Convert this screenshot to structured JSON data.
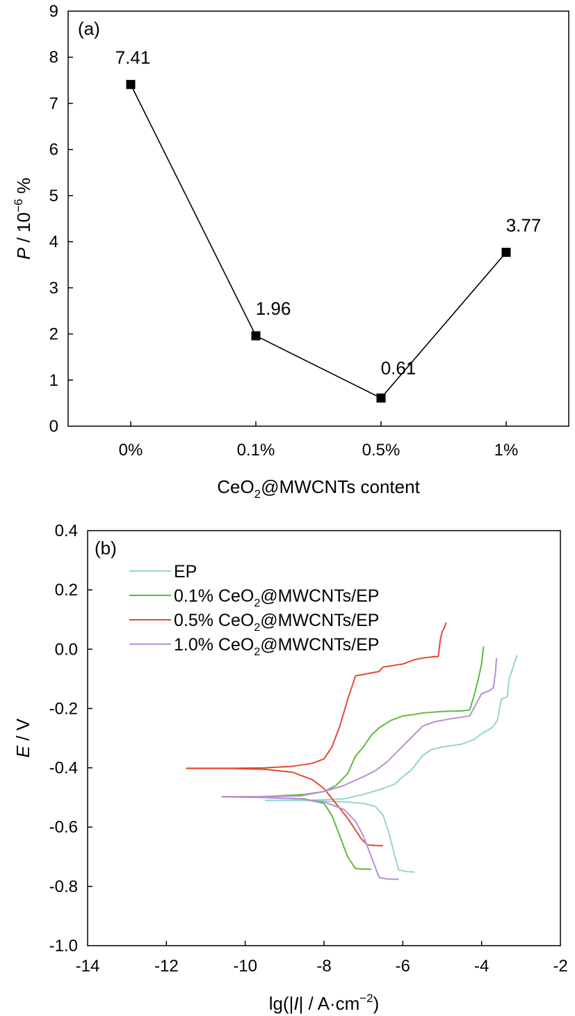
{
  "chart_data": [
    {
      "type": "line",
      "panel_label": "(a)",
      "categories": [
        "0%",
        "0.1%",
        "0.5%",
        "1%"
      ],
      "values": [
        7.41,
        1.96,
        0.61,
        3.77
      ],
      "data_labels": [
        "7.41",
        "1.96",
        "0.61",
        "3.77"
      ],
      "xlabel": {
        "pre": "CeO",
        "sub": "2",
        "post": "@MWCNTs content"
      },
      "ylabel": {
        "italic": "P",
        "pre": " / 10",
        "sup": "−6",
        "post": " %"
      },
      "ylim": [
        0,
        9
      ],
      "yticks": [
        "0",
        "1",
        "2",
        "3",
        "4",
        "5",
        "6",
        "7",
        "8",
        "9"
      ],
      "marker": "square",
      "color": "#000000",
      "grid": false
    },
    {
      "type": "line",
      "panel_label": "(b)",
      "xlabel": {
        "pre": "lg(|",
        "italic": "I",
        "mid": "| / A·cm",
        "sup": "−2",
        "post": ")"
      },
      "ylabel": {
        "italic": "E",
        "post": " / V"
      },
      "xlim": [
        -14,
        -2
      ],
      "ylim": [
        -1.0,
        0.4
      ],
      "xticks": [
        "-14",
        "-12",
        "-10",
        "-8",
        "-6",
        "-4",
        "-2"
      ],
      "yticks": [
        "-1.0",
        "-0.8",
        "-0.6",
        "-0.4",
        "-0.2",
        "0.0",
        "0.2",
        "0.4"
      ],
      "legend_position": "top-left",
      "grid": false,
      "series": [
        {
          "legend": {
            "pre": "EP",
            "sub": "",
            "post": ""
          },
          "color": "#8fd6d3",
          "anodic": [
            [
              -9.5,
              -0.51
            ],
            [
              -8.5,
              -0.51
            ],
            [
              -7.5,
              -0.505
            ],
            [
              -7.0,
              -0.49
            ],
            [
              -6.5,
              -0.47
            ],
            [
              -6.2,
              -0.455
            ],
            [
              -6.0,
              -0.43
            ],
            [
              -5.8,
              -0.41
            ],
            [
              -5.5,
              -0.36
            ],
            [
              -5.3,
              -0.34
            ],
            [
              -5.0,
              -0.33
            ],
            [
              -4.5,
              -0.32
            ],
            [
              -4.2,
              -0.305
            ],
            [
              -4.0,
              -0.285
            ],
            [
              -3.8,
              -0.27
            ],
            [
              -3.7,
              -0.26
            ],
            [
              -3.6,
              -0.24
            ],
            [
              -3.5,
              -0.17
            ],
            [
              -3.35,
              -0.16
            ],
            [
              -3.3,
              -0.1
            ],
            [
              -3.2,
              -0.06
            ],
            [
              -3.1,
              -0.02
            ]
          ],
          "cathodic": [
            [
              -9.5,
              -0.51
            ],
            [
              -8.5,
              -0.51
            ],
            [
              -7.5,
              -0.515
            ],
            [
              -7.0,
              -0.52
            ],
            [
              -6.7,
              -0.53
            ],
            [
              -6.5,
              -0.56
            ],
            [
              -6.35,
              -0.62
            ],
            [
              -6.2,
              -0.7
            ],
            [
              -6.1,
              -0.745
            ],
            [
              -5.9,
              -0.75
            ],
            [
              -5.7,
              -0.752
            ]
          ]
        },
        {
          "legend": {
            "pre": "0.1%  CeO",
            "sub": "2",
            "post": "@MWCNTs/EP"
          },
          "color": "#5cbb3c",
          "anodic": [
            [
              -10.5,
              -0.498
            ],
            [
              -9.5,
              -0.497
            ],
            [
              -8.5,
              -0.49
            ],
            [
              -8.0,
              -0.48
            ],
            [
              -7.7,
              -0.46
            ],
            [
              -7.4,
              -0.42
            ],
            [
              -7.2,
              -0.36
            ],
            [
              -7.0,
              -0.33
            ],
            [
              -6.8,
              -0.29
            ],
            [
              -6.6,
              -0.265
            ],
            [
              -6.3,
              -0.24
            ],
            [
              -6.0,
              -0.225
            ],
            [
              -5.7,
              -0.22
            ],
            [
              -5.5,
              -0.215
            ],
            [
              -5.0,
              -0.21
            ],
            [
              -4.5,
              -0.208
            ],
            [
              -4.3,
              -0.205
            ],
            [
              -4.2,
              -0.16
            ],
            [
              -4.1,
              -0.11
            ],
            [
              -4.0,
              -0.05
            ],
            [
              -3.95,
              0.01
            ]
          ],
          "cathodic": [
            [
              -10.5,
              -0.498
            ],
            [
              -9.5,
              -0.5
            ],
            [
              -8.5,
              -0.505
            ],
            [
              -8.0,
              -0.52
            ],
            [
              -7.8,
              -0.56
            ],
            [
              -7.6,
              -0.63
            ],
            [
              -7.4,
              -0.7
            ],
            [
              -7.2,
              -0.74
            ],
            [
              -7.0,
              -0.742
            ],
            [
              -6.8,
              -0.742
            ]
          ]
        },
        {
          "legend": {
            "pre": "0.5%  CeO",
            "sub": "2",
            "post": "@MWCNTs/EP"
          },
          "color": "#e8472f",
          "anodic": [
            [
              -11.5,
              -0.402
            ],
            [
              -10.5,
              -0.402
            ],
            [
              -9.5,
              -0.4
            ],
            [
              -8.8,
              -0.395
            ],
            [
              -8.3,
              -0.385
            ],
            [
              -8.0,
              -0.37
            ],
            [
              -7.8,
              -0.33
            ],
            [
              -7.6,
              -0.26
            ],
            [
              -7.4,
              -0.17
            ],
            [
              -7.2,
              -0.09
            ],
            [
              -7.0,
              -0.085
            ],
            [
              -6.6,
              -0.075
            ],
            [
              -6.5,
              -0.06
            ],
            [
              -6.0,
              -0.05
            ],
            [
              -5.7,
              -0.035
            ],
            [
              -5.5,
              -0.03
            ],
            [
              -5.2,
              -0.025
            ],
            [
              -5.1,
              -0.025
            ],
            [
              -5.05,
              0.03
            ],
            [
              -5.0,
              0.06
            ],
            [
              -4.95,
              0.07
            ],
            [
              -4.9,
              0.09
            ]
          ],
          "cathodic": [
            [
              -11.5,
              -0.402
            ],
            [
              -10.5,
              -0.402
            ],
            [
              -9.5,
              -0.405
            ],
            [
              -8.8,
              -0.415
            ],
            [
              -8.3,
              -0.44
            ],
            [
              -8.0,
              -0.47
            ],
            [
              -7.7,
              -0.52
            ],
            [
              -7.4,
              -0.57
            ],
            [
              -7.2,
              -0.61
            ],
            [
              -7.05,
              -0.64
            ],
            [
              -6.9,
              -0.66
            ],
            [
              -6.7,
              -0.662
            ],
            [
              -6.5,
              -0.663
            ]
          ]
        },
        {
          "legend": {
            "pre": "1.0%  CeO",
            "sub": "2",
            "post": "@MWCNTs/EP"
          },
          "color": "#b78fd6",
          "anodic": [
            [
              -10.6,
              -0.498
            ],
            [
              -9.6,
              -0.497
            ],
            [
              -8.6,
              -0.495
            ],
            [
              -8.0,
              -0.48
            ],
            [
              -7.5,
              -0.46
            ],
            [
              -7.0,
              -0.43
            ],
            [
              -6.7,
              -0.41
            ],
            [
              -6.4,
              -0.38
            ],
            [
              -6.1,
              -0.34
            ],
            [
              -5.8,
              -0.3
            ],
            [
              -5.5,
              -0.26
            ],
            [
              -5.2,
              -0.245
            ],
            [
              -4.8,
              -0.235
            ],
            [
              -4.3,
              -0.225
            ],
            [
              -4.2,
              -0.2
            ],
            [
              -4.0,
              -0.15
            ],
            [
              -3.8,
              -0.14
            ],
            [
              -3.7,
              -0.13
            ],
            [
              -3.65,
              -0.08
            ],
            [
              -3.62,
              -0.03
            ]
          ],
          "cathodic": [
            [
              -10.6,
              -0.498
            ],
            [
              -9.6,
              -0.5
            ],
            [
              -8.6,
              -0.505
            ],
            [
              -8.0,
              -0.515
            ],
            [
              -7.5,
              -0.54
            ],
            [
              -7.2,
              -0.58
            ],
            [
              -7.0,
              -0.63
            ],
            [
              -6.8,
              -0.7
            ],
            [
              -6.6,
              -0.77
            ],
            [
              -6.4,
              -0.775
            ],
            [
              -6.1,
              -0.776
            ]
          ]
        }
      ]
    }
  ]
}
